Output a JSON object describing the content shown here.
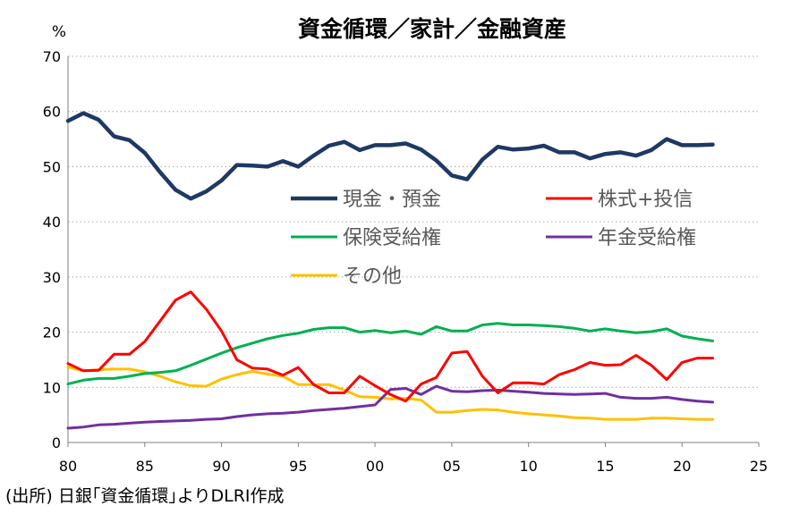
{
  "chart_data": {
    "type": "line",
    "title": "資金循環／家計／金融資産",
    "ylabel": "%",
    "xlabel": "",
    "xlim": [
      1980,
      2025
    ],
    "ylim": [
      0,
      70
    ],
    "x_ticks": [
      1980,
      1985,
      1990,
      1995,
      2000,
      2005,
      2010,
      2015,
      2020,
      2025
    ],
    "x_tick_labels": [
      "80",
      "85",
      "90",
      "95",
      "00",
      "05",
      "10",
      "15",
      "20",
      "25"
    ],
    "y_ticks": [
      0,
      10,
      20,
      30,
      40,
      50,
      60,
      70
    ],
    "y_tick_labels": [
      "0",
      "10",
      "20",
      "30",
      "40",
      "50",
      "60",
      "70"
    ],
    "grid": "horizontal dotted",
    "legend_position": "inside, center-right",
    "x": [
      1980,
      1981,
      1982,
      1983,
      1984,
      1985,
      1986,
      1987,
      1988,
      1989,
      1990,
      1991,
      1992,
      1993,
      1994,
      1995,
      1996,
      1997,
      1998,
      1999,
      2000,
      2001,
      2002,
      2003,
      2004,
      2005,
      2006,
      2007,
      2008,
      2009,
      2010,
      2011,
      2012,
      2013,
      2014,
      2015,
      2016,
      2017,
      2018,
      2019,
      2020,
      2021,
      2022
    ],
    "series": [
      {
        "name": "現金・預金",
        "color": "#1f3864",
        "values": [
          58.3,
          59.7,
          58.5,
          55.5,
          54.8,
          52.5,
          49.0,
          45.8,
          44.2,
          45.5,
          47.5,
          50.3,
          50.2,
          50.0,
          51.0,
          50.0,
          52.0,
          53.8,
          54.5,
          53.0,
          53.9,
          53.9,
          54.2,
          53.1,
          51.1,
          48.4,
          47.7,
          51.3,
          53.6,
          53.1,
          53.3,
          53.8,
          52.6,
          52.6,
          51.5,
          52.3,
          52.6,
          52.0,
          53.0,
          55.0,
          53.9,
          53.9,
          54.0
        ]
      },
      {
        "name": "株式+投信",
        "color": "#ff0000",
        "values": [
          14.3,
          13.0,
          13.1,
          16.0,
          16.0,
          18.3,
          22.0,
          25.8,
          27.3,
          24.2,
          20.2,
          15.0,
          13.5,
          13.3,
          12.2,
          13.6,
          10.5,
          9.0,
          9.0,
          12.0,
          10.3,
          8.7,
          7.5,
          10.6,
          11.8,
          16.2,
          16.5,
          12.0,
          9.0,
          10.8,
          10.8,
          10.6,
          12.3,
          13.2,
          14.5,
          14.0,
          14.1,
          15.8,
          14.0,
          11.4,
          14.5,
          15.3,
          15.3
        ]
      },
      {
        "name": "保険受給権",
        "color": "#00b050",
        "values": [
          10.6,
          11.3,
          11.6,
          11.6,
          12.0,
          12.5,
          12.7,
          13.0,
          14.0,
          15.1,
          16.2,
          17.2,
          18.0,
          18.8,
          19.4,
          19.8,
          20.5,
          20.8,
          20.8,
          20.0,
          20.3,
          19.9,
          20.2,
          19.6,
          21.0,
          20.2,
          20.2,
          21.3,
          21.6,
          21.3,
          21.3,
          21.2,
          21.0,
          20.7,
          20.2,
          20.6,
          20.2,
          19.9,
          20.1,
          20.6,
          19.3,
          18.8,
          18.4
        ]
      },
      {
        "name": "年金受給権",
        "color": "#7030a0",
        "values": [
          2.6,
          2.8,
          3.2,
          3.3,
          3.5,
          3.7,
          3.8,
          3.9,
          4.0,
          4.2,
          4.3,
          4.7,
          5.0,
          5.2,
          5.3,
          5.5,
          5.8,
          6.0,
          6.2,
          6.5,
          6.8,
          9.6,
          9.8,
          8.7,
          10.2,
          9.3,
          9.2,
          9.4,
          9.5,
          9.3,
          9.1,
          8.9,
          8.8,
          8.7,
          8.8,
          8.9,
          8.2,
          8.0,
          8.0,
          8.2,
          7.8,
          7.5,
          7.3
        ]
      },
      {
        "name": "その他",
        "color": "#ffc000",
        "values": [
          13.7,
          13.0,
          13.2,
          13.3,
          13.3,
          12.8,
          12.0,
          11.0,
          10.3,
          10.2,
          11.5,
          12.3,
          12.9,
          12.4,
          12.0,
          10.5,
          10.5,
          10.5,
          9.5,
          8.3,
          8.2,
          7.9,
          8.0,
          7.7,
          5.5,
          5.5,
          5.8,
          6.0,
          5.9,
          5.5,
          5.2,
          5.0,
          4.8,
          4.5,
          4.4,
          4.2,
          4.2,
          4.2,
          4.4,
          4.4,
          4.3,
          4.2,
          4.2
        ]
      }
    ]
  },
  "source_note": "(出所) 日銀｢資金循環｣よりDLRI作成"
}
